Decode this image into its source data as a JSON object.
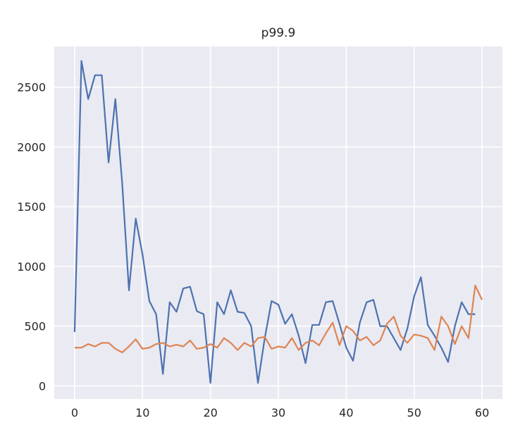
{
  "chart_data": {
    "type": "line",
    "title": "p99.9",
    "xlabel": "",
    "ylabel": "",
    "xlim": [
      -3,
      63
    ],
    "ylim": [
      -110,
      2840
    ],
    "xticks": [
      0,
      10,
      20,
      30,
      40,
      50,
      60
    ],
    "yticks": [
      0,
      500,
      1000,
      1500,
      2000,
      2500
    ],
    "grid": true,
    "legend": "none",
    "colors": {
      "background": "#eaeaf2",
      "grid": "#ffffff",
      "series1": "#4c72b0",
      "series2": "#dd8452"
    },
    "series": [
      {
        "x": [
          0,
          1,
          2,
          3,
          4,
          5,
          6,
          7,
          8,
          9,
          10,
          11,
          12,
          13,
          14,
          15,
          16,
          17,
          18,
          19,
          20,
          21,
          22,
          23,
          24,
          25,
          26,
          27,
          28,
          29,
          30,
          31,
          32,
          33,
          34,
          35,
          36,
          37,
          38,
          39,
          40,
          41,
          42,
          43,
          44,
          45,
          46,
          47,
          48,
          49,
          50,
          51,
          52,
          53,
          54,
          55,
          56,
          57,
          58,
          59
        ],
        "values": [
          450,
          2720,
          2400,
          2600,
          2600,
          1870,
          2400,
          1700,
          800,
          1400,
          1100,
          710,
          600,
          100,
          700,
          620,
          815,
          830,
          625,
          600,
          25,
          700,
          600,
          800,
          620,
          610,
          500,
          25,
          400,
          710,
          680,
          520,
          600,
          420,
          190,
          510,
          510,
          700,
          710,
          520,
          320,
          210,
          530,
          700,
          720,
          500,
          500,
          400,
          300,
          480,
          750,
          910,
          510,
          420,
          320,
          200,
          500,
          700,
          600,
          600
        ]
      },
      {
        "x": [
          0,
          1,
          2,
          3,
          4,
          5,
          6,
          7,
          8,
          9,
          10,
          11,
          12,
          13,
          14,
          15,
          16,
          17,
          18,
          19,
          20,
          21,
          22,
          23,
          24,
          25,
          26,
          27,
          28,
          29,
          30,
          31,
          32,
          33,
          34,
          35,
          36,
          37,
          38,
          39,
          40,
          41,
          42,
          43,
          44,
          45,
          46,
          47,
          48,
          49,
          50,
          51,
          52,
          53,
          54,
          55,
          56,
          57,
          58,
          59,
          60
        ],
        "values": [
          320,
          320,
          350,
          330,
          360,
          360,
          310,
          280,
          330,
          390,
          310,
          320,
          350,
          360,
          330,
          345,
          330,
          380,
          310,
          320,
          350,
          320,
          400,
          360,
          300,
          360,
          330,
          400,
          410,
          310,
          330,
          320,
          400,
          300,
          360,
          380,
          340,
          440,
          530,
          340,
          500,
          460,
          380,
          410,
          340,
          380,
          520,
          580,
          420,
          360,
          430,
          420,
          400,
          300,
          580,
          500,
          350,
          500,
          400,
          840,
          720
        ]
      }
    ]
  }
}
